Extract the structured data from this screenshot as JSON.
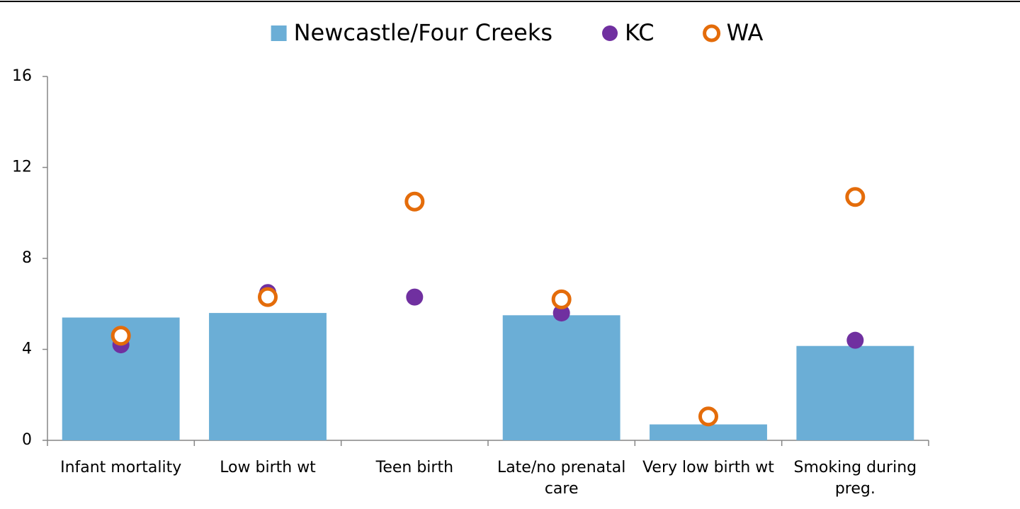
{
  "chart_data": {
    "type": "bar",
    "categories": [
      "Infant mortality",
      "Low birth wt",
      "Teen birth",
      "Late/no prenatal care",
      "Very low birth wt",
      "Smoking during preg."
    ],
    "series": [
      {
        "name": "Newcastle/Four Creeks",
        "color": "#6baed6",
        "marker": "bar",
        "values": [
          5.4,
          5.6,
          null,
          5.5,
          0.7,
          4.15
        ]
      },
      {
        "name": "KC",
        "color": "#7030a0",
        "marker": "dot",
        "values": [
          4.2,
          6.5,
          6.3,
          5.6,
          1.0,
          4.4
        ]
      },
      {
        "name": "WA",
        "color": "#e46c0a",
        "marker": "ring",
        "values": [
          4.6,
          6.3,
          10.5,
          6.2,
          1.05,
          10.7
        ]
      }
    ],
    "ylim": [
      0,
      16
    ],
    "yticks": [
      0,
      4,
      8,
      12,
      16
    ],
    "grid": false,
    "legend": "top"
  }
}
